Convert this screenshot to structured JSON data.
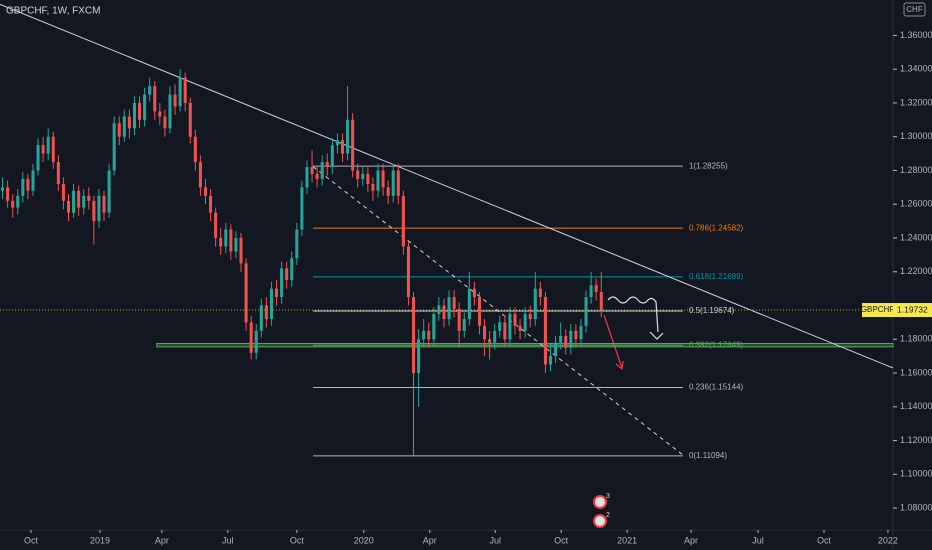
{
  "chart_data": {
    "type": "candlestick",
    "title": "GBPCHF, 1W, FXCM",
    "currency": "CHF",
    "symbol": "GBPCHF",
    "last_price": 1.19732,
    "up_color": "#26a69a",
    "down_color": "#ef5350",
    "grid": false,
    "xlim": [
      0,
      176
    ],
    "ylim": [
      1.067,
      1.381
    ],
    "xticks": [
      {
        "value": 6.1,
        "label": "Oct"
      },
      {
        "value": 19.7,
        "label": "2019"
      },
      {
        "value": 31.9,
        "label": "Apr"
      },
      {
        "value": 44.9,
        "label": "Jul"
      },
      {
        "value": 58.5,
        "label": "Oct"
      },
      {
        "value": 71.7,
        "label": "2020"
      },
      {
        "value": 84.7,
        "label": "Apr"
      },
      {
        "value": 97.6,
        "label": "Jul"
      },
      {
        "value": 110.6,
        "label": "Oct"
      },
      {
        "value": 123.6,
        "label": "2021"
      },
      {
        "value": 136.2,
        "label": "Apr"
      },
      {
        "value": 149.4,
        "label": "Jul"
      },
      {
        "value": 162.4,
        "label": "Oct"
      },
      {
        "value": 175.0,
        "label": "2022"
      }
    ],
    "yticks": [
      {
        "value": 1.36,
        "label": "1.36000"
      },
      {
        "value": 1.34,
        "label": "1.34000"
      },
      {
        "value": 1.32,
        "label": "1.32000"
      },
      {
        "value": 1.3,
        "label": "1.30000"
      },
      {
        "value": 1.28,
        "label": "1.28000"
      },
      {
        "value": 1.26,
        "label": "1.26000"
      },
      {
        "value": 1.24,
        "label": "1.24000"
      },
      {
        "value": 1.22,
        "label": "1.22000"
      },
      {
        "value": 1.18,
        "label": "1.18000"
      },
      {
        "value": 1.16,
        "label": "1.16000"
      },
      {
        "value": 1.14,
        "label": "1.14000"
      },
      {
        "value": 1.12,
        "label": "1.12000"
      },
      {
        "value": 1.1,
        "label": "1.10000"
      },
      {
        "value": 1.08,
        "label": "1.08000"
      }
    ],
    "candles": [
      [
        1.268,
        1.276,
        1.263,
        1.27
      ],
      [
        1.27,
        1.274,
        1.258,
        1.262
      ],
      [
        1.262,
        1.266,
        1.252,
        1.258
      ],
      [
        1.258,
        1.269,
        1.254,
        1.265
      ],
      [
        1.265,
        1.279,
        1.261,
        1.275
      ],
      [
        1.275,
        1.278,
        1.263,
        1.268
      ],
      [
        1.268,
        1.284,
        1.265,
        1.28
      ],
      [
        1.28,
        1.299,
        1.277,
        1.295
      ],
      [
        1.295,
        1.3,
        1.285,
        1.29
      ],
      [
        1.29,
        1.305,
        1.286,
        1.3
      ],
      [
        1.3,
        1.303,
        1.281,
        1.285
      ],
      [
        1.285,
        1.289,
        1.268,
        1.272
      ],
      [
        1.272,
        1.276,
        1.257,
        1.262
      ],
      [
        1.262,
        1.266,
        1.25,
        1.255
      ],
      [
        1.255,
        1.272,
        1.252,
        1.268
      ],
      [
        1.268,
        1.271,
        1.253,
        1.258
      ],
      [
        1.258,
        1.269,
        1.254,
        1.265
      ],
      [
        1.265,
        1.27,
        1.257,
        1.262
      ],
      [
        1.262,
        1.265,
        1.236,
        1.25
      ],
      [
        1.25,
        1.269,
        1.246,
        1.265
      ],
      [
        1.265,
        1.268,
        1.25,
        1.255
      ],
      [
        1.255,
        1.284,
        1.252,
        1.28
      ],
      [
        1.28,
        1.312,
        1.277,
        1.308
      ],
      [
        1.308,
        1.312,
        1.295,
        1.3
      ],
      [
        1.3,
        1.316,
        1.297,
        1.312
      ],
      [
        1.312,
        1.316,
        1.299,
        1.305
      ],
      [
        1.305,
        1.324,
        1.301,
        1.32
      ],
      [
        1.32,
        1.324,
        1.305,
        1.31
      ],
      [
        1.31,
        1.329,
        1.306,
        1.325
      ],
      [
        1.325,
        1.335,
        1.321,
        1.33
      ],
      [
        1.33,
        1.333,
        1.31,
        1.315
      ],
      [
        1.315,
        1.32,
        1.307,
        1.312
      ],
      [
        1.312,
        1.316,
        1.3,
        1.305
      ],
      [
        1.305,
        1.33,
        1.302,
        1.325
      ],
      [
        1.325,
        1.331,
        1.313,
        1.318
      ],
      [
        1.318,
        1.34,
        1.315,
        1.335
      ],
      [
        1.335,
        1.338,
        1.315,
        1.32
      ],
      [
        1.32,
        1.323,
        1.296,
        1.3
      ],
      [
        1.3,
        1.304,
        1.28,
        1.285
      ],
      [
        1.285,
        1.289,
        1.265,
        1.27
      ],
      [
        1.27,
        1.275,
        1.26,
        1.265
      ],
      [
        1.265,
        1.269,
        1.25,
        1.255
      ],
      [
        1.255,
        1.258,
        1.235,
        1.24
      ],
      [
        1.24,
        1.246,
        1.23,
        1.235
      ],
      [
        1.235,
        1.249,
        1.231,
        1.245
      ],
      [
        1.245,
        1.248,
        1.227,
        1.232
      ],
      [
        1.232,
        1.244,
        1.228,
        1.24
      ],
      [
        1.24,
        1.243,
        1.22,
        1.225
      ],
      [
        1.225,
        1.228,
        1.185,
        1.19
      ],
      [
        1.19,
        1.194,
        1.168,
        1.172
      ],
      [
        1.172,
        1.189,
        1.168,
        1.185
      ],
      [
        1.185,
        1.204,
        1.181,
        1.2
      ],
      [
        1.2,
        1.205,
        1.187,
        1.192
      ],
      [
        1.192,
        1.214,
        1.188,
        1.21
      ],
      [
        1.21,
        1.215,
        1.2,
        1.205
      ],
      [
        1.205,
        1.226,
        1.201,
        1.222
      ],
      [
        1.222,
        1.226,
        1.21,
        1.215
      ],
      [
        1.215,
        1.232,
        1.211,
        1.228
      ],
      [
        1.228,
        1.249,
        1.224,
        1.245
      ],
      [
        1.245,
        1.274,
        1.241,
        1.27
      ],
      [
        1.27,
        1.286,
        1.266,
        1.282
      ],
      [
        1.282,
        1.292,
        1.273,
        1.278
      ],
      [
        1.278,
        1.283,
        1.27,
        1.275
      ],
      [
        1.275,
        1.289,
        1.271,
        1.285
      ],
      [
        1.285,
        1.29,
        1.277,
        1.282
      ],
      [
        1.282,
        1.299,
        1.278,
        1.295
      ],
      [
        1.295,
        1.302,
        1.29,
        1.298
      ],
      [
        1.298,
        1.302,
        1.285,
        1.29
      ],
      [
        1.29,
        1.33,
        1.286,
        1.31
      ],
      [
        1.31,
        1.314,
        1.276,
        1.28
      ],
      [
        1.28,
        1.284,
        1.27,
        1.275
      ],
      [
        1.275,
        1.282,
        1.271,
        1.278
      ],
      [
        1.278,
        1.282,
        1.267,
        1.272
      ],
      [
        1.272,
        1.276,
        1.262,
        1.268
      ],
      [
        1.268,
        1.284,
        1.264,
        1.28
      ],
      [
        1.28,
        1.284,
        1.265,
        1.27
      ],
      [
        1.27,
        1.274,
        1.26,
        1.265
      ],
      [
        1.265,
        1.284,
        1.261,
        1.28
      ],
      [
        1.28,
        1.284,
        1.26,
        1.265
      ],
      [
        1.265,
        1.268,
        1.23,
        1.235
      ],
      [
        1.235,
        1.238,
        1.2,
        1.205
      ],
      [
        1.205,
        1.208,
        1.111,
        1.16
      ],
      [
        1.16,
        1.186,
        1.14,
        1.18
      ],
      [
        1.18,
        1.192,
        1.175,
        1.185
      ],
      [
        1.185,
        1.19,
        1.175,
        1.18
      ],
      [
        1.18,
        1.199,
        1.176,
        1.195
      ],
      [
        1.195,
        1.205,
        1.191,
        1.2
      ],
      [
        1.2,
        1.204,
        1.187,
        1.192
      ],
      [
        1.192,
        1.209,
        1.188,
        1.205
      ],
      [
        1.205,
        1.209,
        1.193,
        1.198
      ],
      [
        1.198,
        1.202,
        1.175,
        1.185
      ],
      [
        1.185,
        1.196,
        1.181,
        1.192
      ],
      [
        1.192,
        1.22,
        1.188,
        1.21
      ],
      [
        1.21,
        1.214,
        1.2,
        1.205
      ],
      [
        1.205,
        1.208,
        1.183,
        1.188
      ],
      [
        1.188,
        1.192,
        1.17,
        1.18
      ],
      [
        1.18,
        1.185,
        1.168,
        1.178
      ],
      [
        1.178,
        1.189,
        1.174,
        1.185
      ],
      [
        1.185,
        1.194,
        1.181,
        1.19
      ],
      [
        1.19,
        1.194,
        1.176,
        1.18
      ],
      [
        1.18,
        1.199,
        1.176,
        1.195
      ],
      [
        1.195,
        1.199,
        1.183,
        1.188
      ],
      [
        1.188,
        1.192,
        1.18,
        1.185
      ],
      [
        1.185,
        1.199,
        1.181,
        1.195
      ],
      [
        1.195,
        1.2,
        1.187,
        1.192
      ],
      [
        1.192,
        1.22,
        1.188,
        1.21
      ],
      [
        1.21,
        1.214,
        1.2,
        1.205
      ],
      [
        1.205,
        1.208,
        1.16,
        1.165
      ],
      [
        1.165,
        1.178,
        1.161,
        1.17
      ],
      [
        1.17,
        1.182,
        1.166,
        1.178
      ],
      [
        1.178,
        1.19,
        1.174,
        1.182
      ],
      [
        1.182,
        1.186,
        1.171,
        1.175
      ],
      [
        1.175,
        1.189,
        1.171,
        1.185
      ],
      [
        1.185,
        1.189,
        1.175,
        1.18
      ],
      [
        1.18,
        1.192,
        1.176,
        1.188
      ],
      [
        1.188,
        1.209,
        1.184,
        1.205
      ],
      [
        1.205,
        1.22,
        1.201,
        1.212
      ],
      [
        1.212,
        1.216,
        1.203,
        1.208
      ],
      [
        1.208,
        1.22,
        1.193,
        1.19732
      ]
    ],
    "fib_x": [
      61.7,
      134.6
    ],
    "fib_levels": [
      {
        "label": "1(1.28255)",
        "value": 1.28255,
        "color": "#b2b5be"
      },
      {
        "label": "0.786(1.24582)",
        "value": 1.24582,
        "color": "#f57c00"
      },
      {
        "label": "0.618(1.21699)",
        "value": 1.21699,
        "color": "#0097a7"
      },
      {
        "label": "0.5(1.19674)",
        "value": 1.19674,
        "color": "#d1d4dc"
      },
      {
        "label": "0.382(1.17649)",
        "value": 1.17649,
        "color": "#4caf50"
      },
      {
        "label": "0.236(1.15144)",
        "value": 1.15144,
        "color": "#b2b5be"
      },
      {
        "label": "0(1.11094)",
        "value": 1.11094,
        "color": "#b2b5be"
      }
    ],
    "zone": {
      "x": [
        30.9,
        176
      ],
      "y": [
        1.1755,
        1.1775
      ],
      "color": "#4caf50"
    },
    "trend_lines": [
      {
        "x": [
          0,
          176
        ],
        "y": [
          1.3784,
          1.163
        ],
        "dashed": false
      },
      {
        "x": [
          61.7,
          134.6
        ],
        "y": [
          1.2823,
          1.1114
        ],
        "dashed": true
      }
    ],
    "badges": [
      "3",
      "2"
    ]
  }
}
